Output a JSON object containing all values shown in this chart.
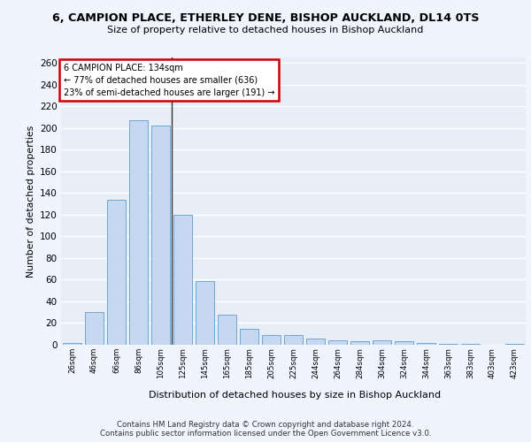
{
  "title": "6, CAMPION PLACE, ETHERLEY DENE, BISHOP AUCKLAND, DL14 0TS",
  "subtitle": "Size of property relative to detached houses in Bishop Auckland",
  "xlabel": "Distribution of detached houses by size in Bishop Auckland",
  "ylabel": "Number of detached properties",
  "categories": [
    "26sqm",
    "46sqm",
    "66sqm",
    "86sqm",
    "105sqm",
    "125sqm",
    "145sqm",
    "165sqm",
    "185sqm",
    "205sqm",
    "225sqm",
    "244sqm",
    "264sqm",
    "284sqm",
    "304sqm",
    "324sqm",
    "344sqm",
    "363sqm",
    "383sqm",
    "403sqm",
    "423sqm"
  ],
  "values": [
    2,
    30,
    134,
    207,
    202,
    120,
    59,
    28,
    15,
    9,
    9,
    6,
    4,
    3,
    4,
    3,
    2,
    1,
    1,
    0,
    1
  ],
  "bar_color": "#c5d8f0",
  "bar_edge_color": "#6ea6d0",
  "background_color": "#e8eef8",
  "grid_color": "#ffffff",
  "annotation_box_text": [
    "6 CAMPION PLACE: 134sqm",
    "← 77% of detached houses are smaller (636)",
    "23% of semi-detached houses are larger (191) →"
  ],
  "annotation_box_color": "#ffffff",
  "annotation_box_edge_color": "#cc0000",
  "ylim": [
    0,
    265
  ],
  "yticks": [
    0,
    20,
    40,
    60,
    80,
    100,
    120,
    140,
    160,
    180,
    200,
    220,
    240,
    260
  ],
  "footer_line1": "Contains HM Land Registry data © Crown copyright and database right 2024.",
  "footer_line2": "Contains public sector information licensed under the Open Government Licence v3.0.",
  "fig_bg": "#f0f4fc"
}
